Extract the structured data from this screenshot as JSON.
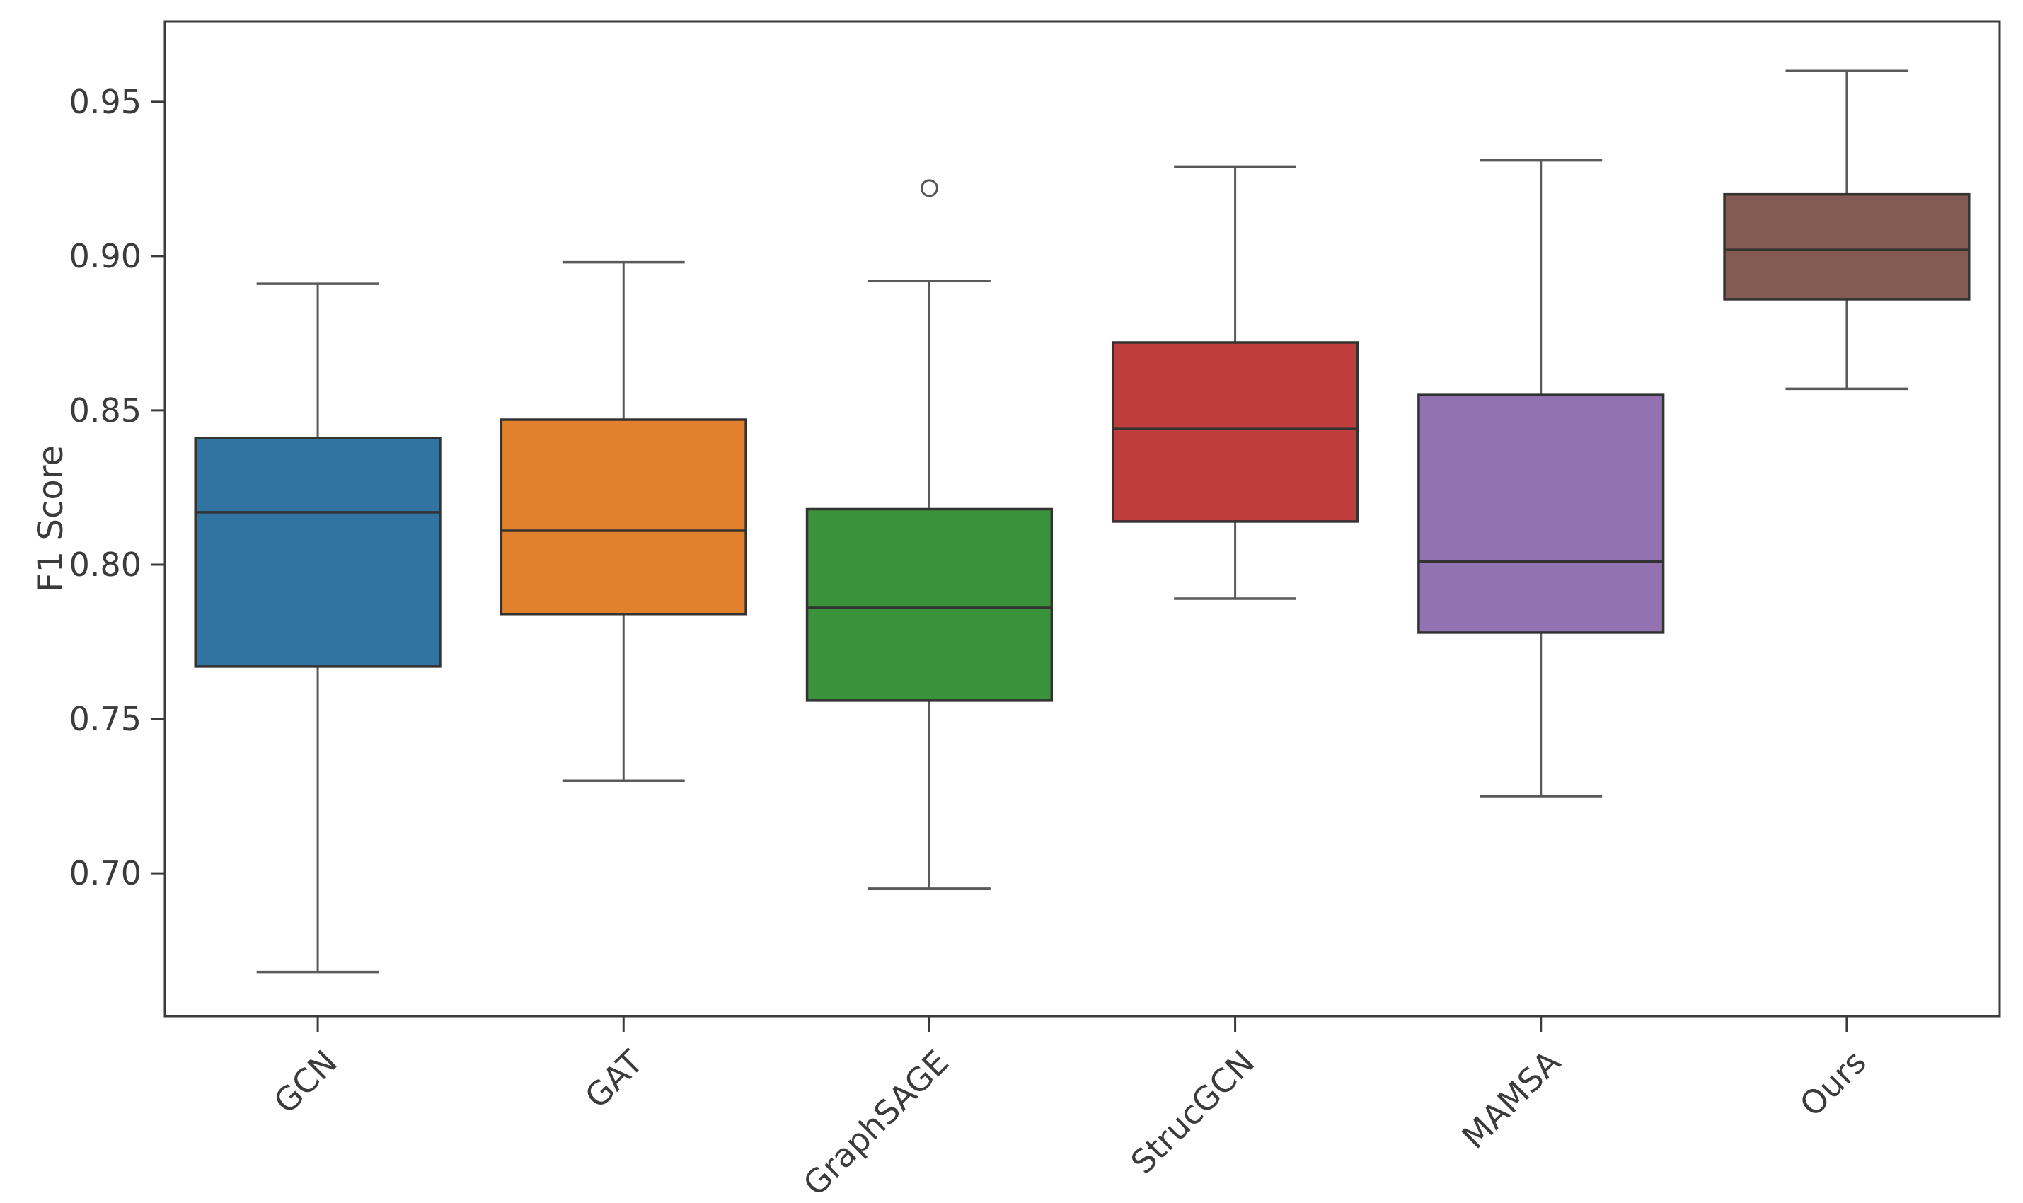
{
  "figure": {
    "background": "#ffffff"
  },
  "chart_data": {
    "type": "box",
    "title": "",
    "xlabel": "",
    "ylabel": "F1 Score",
    "grid": false,
    "legend": "none",
    "orientation": "vertical",
    "box_width_fraction": 0.8,
    "ylim": [
      0.6537,
      0.9761
    ],
    "yticks": [
      {
        "value": 0.7,
        "label": "0.70"
      },
      {
        "value": 0.75,
        "label": "0.75"
      },
      {
        "value": 0.8,
        "label": "0.80"
      },
      {
        "value": 0.85,
        "label": "0.85"
      },
      {
        "value": 0.9,
        "label": "0.90"
      },
      {
        "value": 0.95,
        "label": "0.95"
      }
    ],
    "categories": [
      "GCN",
      "GAT",
      "GraphSAGE",
      "StrucGCN",
      "MAMSA",
      "Ours"
    ],
    "series": [
      {
        "name": "GCN",
        "color": "#3274a1",
        "whisker_low": 0.668,
        "q1": 0.767,
        "median": 0.817,
        "q3": 0.841,
        "whisker_high": 0.891,
        "fliers": []
      },
      {
        "name": "GAT",
        "color": "#e1812c",
        "whisker_low": 0.73,
        "q1": 0.784,
        "median": 0.811,
        "q3": 0.847,
        "whisker_high": 0.898,
        "fliers": []
      },
      {
        "name": "GraphSAGE",
        "color": "#3a923a",
        "whisker_low": 0.695,
        "q1": 0.756,
        "median": 0.786,
        "q3": 0.818,
        "whisker_high": 0.892,
        "fliers": [
          0.922
        ]
      },
      {
        "name": "StrucGCN",
        "color": "#c03d3e",
        "whisker_low": 0.789,
        "q1": 0.814,
        "median": 0.844,
        "q3": 0.872,
        "whisker_high": 0.929,
        "fliers": []
      },
      {
        "name": "MAMSA",
        "color": "#9372b2",
        "whisker_low": 0.725,
        "q1": 0.778,
        "median": 0.801,
        "q3": 0.855,
        "whisker_high": 0.931,
        "fliers": []
      },
      {
        "name": "Ours",
        "color": "#845b53",
        "whisker_low": 0.857,
        "q1": 0.886,
        "median": 0.902,
        "q3": 0.92,
        "whisker_high": 0.96,
        "fliers": []
      }
    ],
    "styles": {
      "frame_color": "#3a3a3a",
      "box_edge_color": "#333333",
      "median_color": "#333333",
      "whisker_color": "#5a5a5a",
      "flier_edge_color": "#555555",
      "tick_text_color": "#3b3b3b"
    }
  }
}
